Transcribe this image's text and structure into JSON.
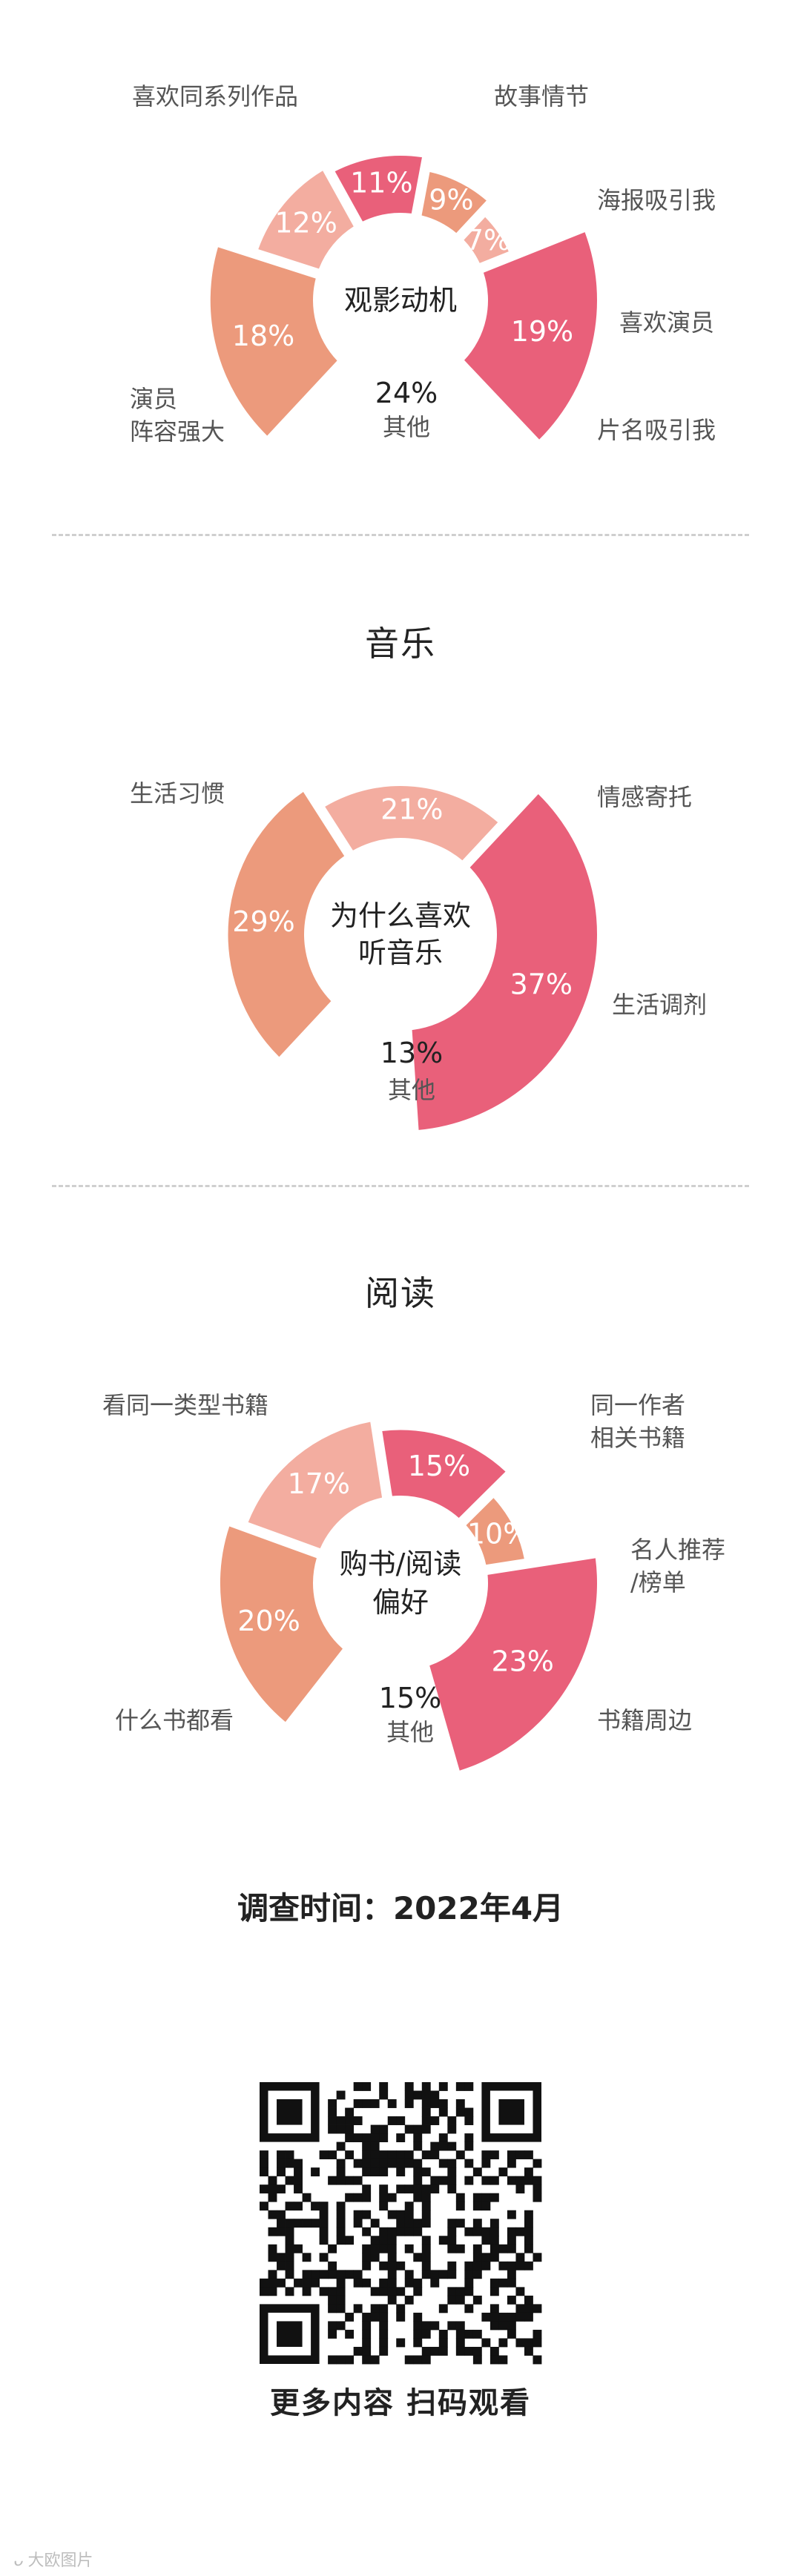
{
  "sections": [
    {
      "title": ""
    },
    {
      "title": "音乐"
    },
    {
      "title": "阅读"
    }
  ],
  "chart_data": [
    {
      "type": "pie",
      "center_label": [
        "观影动机"
      ],
      "slices": [
        {
          "label": [
            "喜欢同系列作品"
          ],
          "value": 18,
          "value_text": "18%",
          "color": "#ec9a7c"
        },
        {
          "label": [
            "故事情节"
          ],
          "value": 12,
          "value_text": "12%",
          "color": "#f3ada0"
        },
        {
          "label": [
            "海报吸引我"
          ],
          "value": 11,
          "value_text": "11%",
          "color": "#e9607a"
        },
        {
          "label": [
            "喜欢演员"
          ],
          "value": 9,
          "value_text": "9%",
          "color": "#ec9a7c"
        },
        {
          "label": [
            "片名吸引我"
          ],
          "value": 7,
          "value_text": "7%",
          "color": "#f3ada0"
        },
        {
          "label": [
            "演员",
            "阵容强大"
          ],
          "value": 19,
          "value_text": "19%",
          "color": "#e9607a"
        }
      ],
      "other": {
        "value": 24,
        "value_text": "24%",
        "label": "其他"
      }
    },
    {
      "type": "pie",
      "center_label": [
        "为什么喜欢",
        "听音乐"
      ],
      "slices": [
        {
          "label": [
            "情感寄托"
          ],
          "value": 29,
          "value_text": "29%",
          "color": "#ec9a7c"
        },
        {
          "label": [
            "生活调剂"
          ],
          "value": 21,
          "value_text": "21%",
          "color": "#f3ada0"
        },
        {
          "label": [
            "生活习惯"
          ],
          "value": 37,
          "value_text": "37%",
          "color": "#e9607a"
        }
      ],
      "other": {
        "value": 13,
        "value_text": "13%",
        "label": "其他"
      }
    },
    {
      "type": "pie",
      "center_label": [
        "购书/阅读",
        "偏好"
      ],
      "slices": [
        {
          "label": [
            "看同一类型书籍"
          ],
          "value": 20,
          "value_text": "20%",
          "color": "#ec9a7c"
        },
        {
          "label": [
            "同一作者",
            "相关书籍"
          ],
          "value": 17,
          "value_text": "17%",
          "color": "#f3ada0"
        },
        {
          "label": [
            "名人推荐",
            "/榜单"
          ],
          "value": 15,
          "value_text": "15%",
          "color": "#e9607a"
        },
        {
          "label": [
            "书籍周边"
          ],
          "value": 10,
          "value_text": "10%",
          "color": "#ec9a7c"
        },
        {
          "label": [
            "什么书都看"
          ],
          "value": 23,
          "value_text": "23%",
          "color": "#e9607a"
        }
      ],
      "other": {
        "value": 15,
        "value_text": "15%",
        "label": "其他"
      }
    }
  ],
  "survey_date": "调查时间：2022年4月",
  "qr": {
    "icon": "qr-code-icon"
  },
  "qr_caption": "更多内容 扫码观看",
  "watermark": "大欧图片"
}
